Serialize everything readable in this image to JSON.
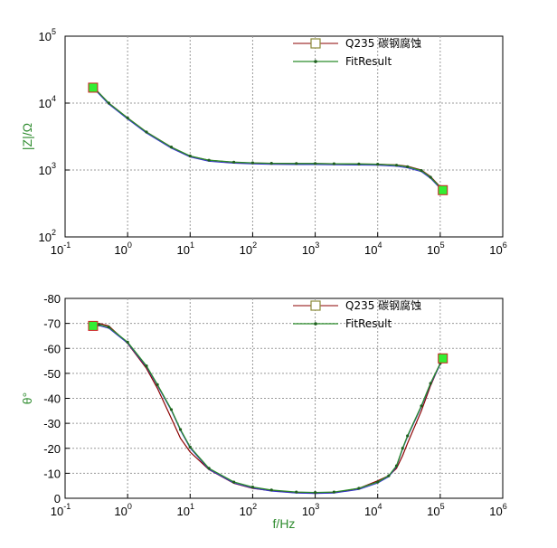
{
  "colors": {
    "axis_title": "#2e8b2e",
    "measured_line": "#8b0000",
    "measured_marker_fill": "#33ee33",
    "measured_marker_stroke": "#cc2222",
    "fit_line": "#2a8c2a",
    "fit_alt_line": "#3333cc",
    "fit_marker": "#1f5f1f",
    "legend_marker_stroke": "#8a8a3a"
  },
  "chart_data": [
    {
      "type": "line",
      "panel": "impedance-magnitude",
      "xscale": "log",
      "yscale": "log",
      "xlim": [
        0.1,
        1000000
      ],
      "ylim": [
        100,
        100000
      ],
      "xlabel": "",
      "ylabel": "|Z|/Ω",
      "x_ticks": [
        {
          "base": "10",
          "exp": "-1"
        },
        {
          "base": "10",
          "exp": "0"
        },
        {
          "base": "10",
          "exp": "1"
        },
        {
          "base": "10",
          "exp": "2"
        },
        {
          "base": "10",
          "exp": "3"
        },
        {
          "base": "10",
          "exp": "4"
        },
        {
          "base": "10",
          "exp": "5"
        },
        {
          "base": "10",
          "exp": "6"
        }
      ],
      "y_ticks": [
        {
          "base": "10",
          "exp": "2"
        },
        {
          "base": "10",
          "exp": "3"
        },
        {
          "base": "10",
          "exp": "4"
        },
        {
          "base": "10",
          "exp": "5"
        }
      ],
      "legend": {
        "position": "top-right",
        "entries": [
          "Q235 碳钢腐蚀",
          "FitResult"
        ]
      },
      "grid": true,
      "series": [
        {
          "name": "Q235 碳钢腐蚀",
          "x": [
            0.28,
            0.32,
            0.5,
            1,
            2,
            5,
            10,
            20,
            50,
            100,
            200,
            500,
            1000,
            2000,
            5000,
            10000,
            20000,
            30000,
            50000,
            70000,
            100000,
            110000
          ],
          "y": [
            17000,
            15400,
            10000,
            6000,
            3700,
            2200,
            1600,
            1400,
            1300,
            1270,
            1260,
            1250,
            1250,
            1240,
            1230,
            1220,
            1190,
            1140,
            1000,
            800,
            560,
            500
          ]
        },
        {
          "name": "FitResult",
          "x": [
            0.28,
            0.32,
            0.5,
            1,
            2,
            5,
            10,
            20,
            50,
            100,
            200,
            500,
            1000,
            2000,
            5000,
            10000,
            20000,
            30000,
            50000,
            70000,
            100000,
            110000
          ],
          "y": [
            17000,
            15400,
            10000,
            6000,
            3700,
            2200,
            1620,
            1400,
            1310,
            1280,
            1260,
            1250,
            1250,
            1240,
            1230,
            1220,
            1180,
            1120,
            980,
            780,
            550,
            500
          ]
        }
      ]
    },
    {
      "type": "line",
      "panel": "phase-angle",
      "xscale": "log",
      "yscale": "linear",
      "xlim": [
        0.1,
        1000000
      ],
      "ylim": [
        0,
        -80
      ],
      "xlabel": "f/Hz",
      "ylabel": "θ°",
      "x_ticks": [
        {
          "base": "10",
          "exp": "-1"
        },
        {
          "base": "10",
          "exp": "0"
        },
        {
          "base": "10",
          "exp": "1"
        },
        {
          "base": "10",
          "exp": "2"
        },
        {
          "base": "10",
          "exp": "3"
        },
        {
          "base": "10",
          "exp": "4"
        },
        {
          "base": "10",
          "exp": "5"
        },
        {
          "base": "10",
          "exp": "6"
        }
      ],
      "y_ticks": [
        "0",
        "-10",
        "-20",
        "-30",
        "-40",
        "-50",
        "-60",
        "-70",
        "-80"
      ],
      "legend": {
        "position": "top-right",
        "entries": [
          "Q235 碳钢腐蚀",
          "FitResult"
        ]
      },
      "grid": true,
      "series": [
        {
          "name": "Q235 碳钢腐蚀",
          "x": [
            0.28,
            0.35,
            0.5,
            1,
            2,
            3,
            5,
            7,
            10,
            20,
            50,
            100,
            200,
            500,
            1000,
            2000,
            5000,
            10000,
            15000,
            20000,
            25000,
            30000,
            50000,
            70000,
            100000,
            110000
          ],
          "y": [
            -69,
            -70,
            -69,
            -62,
            -52,
            -44,
            -32,
            -24,
            -18.5,
            -11.5,
            -6,
            -4,
            -3,
            -2.2,
            -2,
            -2.2,
            -4,
            -7,
            -9,
            -12,
            -17,
            -22,
            -35,
            -45,
            -54,
            -56
          ]
        },
        {
          "name": "FitResult",
          "x": [
            0.28,
            0.35,
            0.5,
            1,
            2,
            3,
            5,
            7,
            10,
            20,
            50,
            100,
            200,
            500,
            1000,
            2000,
            5000,
            10000,
            15000,
            20000,
            25000,
            30000,
            50000,
            70000,
            100000,
            110000
          ],
          "y": [
            -69,
            -69.5,
            -68.5,
            -62.5,
            -53,
            -45.5,
            -35.5,
            -27.5,
            -20.5,
            -12,
            -6.5,
            -4.5,
            -3.3,
            -2.5,
            -2.3,
            -2.5,
            -4,
            -6.5,
            -9,
            -13,
            -20,
            -25,
            -37,
            -46,
            -54,
            -56
          ]
        }
      ]
    }
  ]
}
